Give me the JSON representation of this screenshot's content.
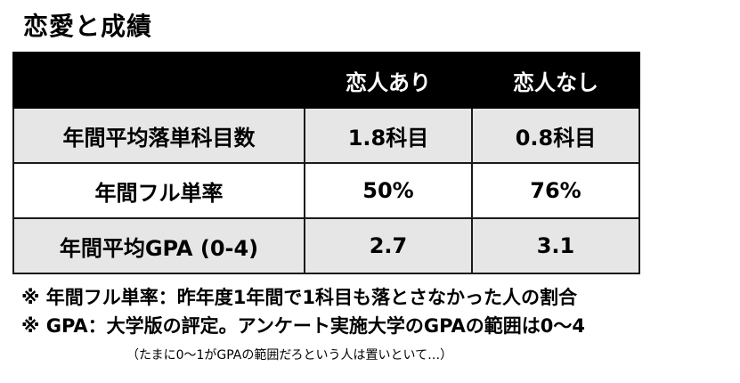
{
  "title": "恋愛と成績",
  "table": {
    "headers": [
      "",
      "恋人あり",
      "恋人なし"
    ],
    "rows": [
      {
        "label": "年間平均落単科目数",
        "with_partner": "1.8科目",
        "without_partner": "0.8科目"
      },
      {
        "label": "年間フル単率",
        "with_partner": "50%",
        "without_partner": "76%"
      },
      {
        "label": "年間平均GPA (0-4)",
        "with_partner": "2.7",
        "without_partner": "3.1"
      }
    ]
  },
  "notes": {
    "line1": "※ 年間フル単率：昨年度1年間で1科目も落とさなかった人の割合",
    "line2": "※ GPA：大学版の評定。アンケート実施大学のGPAの範囲は0〜4",
    "line3": "（たまに0〜1がGPAの範囲だろという人は置いといて…）"
  },
  "colors": {
    "header_bg": "#000000",
    "header_text": "#ffffff",
    "row_gray": "#e6e6e6",
    "row_white": "#ffffff"
  }
}
